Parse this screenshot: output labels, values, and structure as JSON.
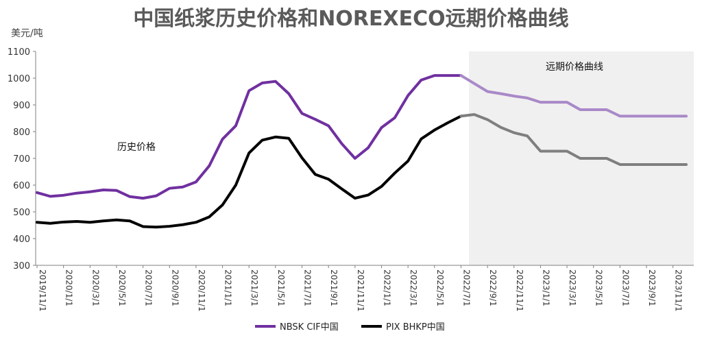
{
  "chart_data": {
    "type": "line",
    "title": "中国纸浆历史价格和NOREXECO远期价格曲线",
    "ylabel": "美元/吨",
    "ylim": [
      300,
      1100
    ],
    "yticks": [
      300,
      400,
      500,
      600,
      700,
      800,
      900,
      1000,
      1100
    ],
    "xtick_labels": [
      "2019/11/1",
      "2020/1/1",
      "2020/3/1",
      "2020/5/1",
      "2020/7/1",
      "2020/9/1",
      "2020/11/1",
      "2021/1/1",
      "2021/3/1",
      "2021/5/1",
      "2021/7/1",
      "2021/9/1",
      "2021/11/1",
      "2022/1/1",
      "2022/3/1",
      "2022/5/1",
      "2022/7/1",
      "2022/9/1",
      "2022/11/1",
      "2023/1/1",
      "2023/3/1",
      "2023/5/1",
      "2023/7/1",
      "2023/9/1",
      "2023/11/1"
    ],
    "x": [
      "2019/11/1",
      "2019/12/1",
      "2020/1/1",
      "2020/2/1",
      "2020/3/1",
      "2020/4/1",
      "2020/5/1",
      "2020/6/1",
      "2020/7/1",
      "2020/8/1",
      "2020/9/1",
      "2020/10/1",
      "2020/11/1",
      "2020/12/1",
      "2021/1/1",
      "2021/2/1",
      "2021/3/1",
      "2021/4/1",
      "2021/5/1",
      "2021/6/1",
      "2021/7/1",
      "2021/8/1",
      "2021/9/1",
      "2021/10/1",
      "2021/11/1",
      "2021/12/1",
      "2022/1/1",
      "2022/2/1",
      "2022/3/1",
      "2022/4/1",
      "2022/5/1",
      "2022/6/1",
      "2022/7/1",
      "2022/8/1",
      "2022/9/1",
      "2022/10/1",
      "2022/11/1",
      "2022/12/1",
      "2023/1/1",
      "2023/2/1",
      "2023/3/1",
      "2023/4/1",
      "2023/5/1",
      "2023/6/1",
      "2023/7/1",
      "2023/8/1",
      "2023/9/1",
      "2023/10/1",
      "2023/11/1",
      "2023/12/1"
    ],
    "forecast_start_index": 33,
    "forecast_label": "远期价格曲线",
    "history_label": "历史价格",
    "series": [
      {
        "name": "NBSK CIF中国",
        "color": "#7030a0",
        "forecast_color": "#a989c8",
        "values": [
          572,
          558,
          562,
          570,
          575,
          582,
          580,
          557,
          551,
          560,
          588,
          593,
          612,
          672,
          772,
          822,
          953,
          982,
          988,
          942,
          868,
          846,
          822,
          755,
          700,
          740,
          815,
          852,
          935,
          993,
          1010,
          1010,
          1010,
          980,
          950,
          942,
          933,
          926,
          910,
          910,
          910,
          882,
          882,
          882,
          858,
          858,
          858,
          858,
          858,
          858
        ]
      },
      {
        "name": "PIX BHKP中国",
        "color": "#000000",
        "forecast_color": "#7f7f7f",
        "values": [
          461,
          457,
          462,
          464,
          461,
          466,
          470,
          466,
          445,
          443,
          446,
          452,
          461,
          481,
          526,
          600,
          720,
          768,
          780,
          775,
          702,
          640,
          622,
          586,
          551,
          563,
          595,
          645,
          690,
          773,
          806,
          833,
          858,
          864,
          845,
          816,
          796,
          784,
          727,
          727,
          727,
          700,
          700,
          700,
          677,
          677,
          677,
          677,
          677,
          677
        ]
      }
    ],
    "legend_position": "bottom"
  }
}
